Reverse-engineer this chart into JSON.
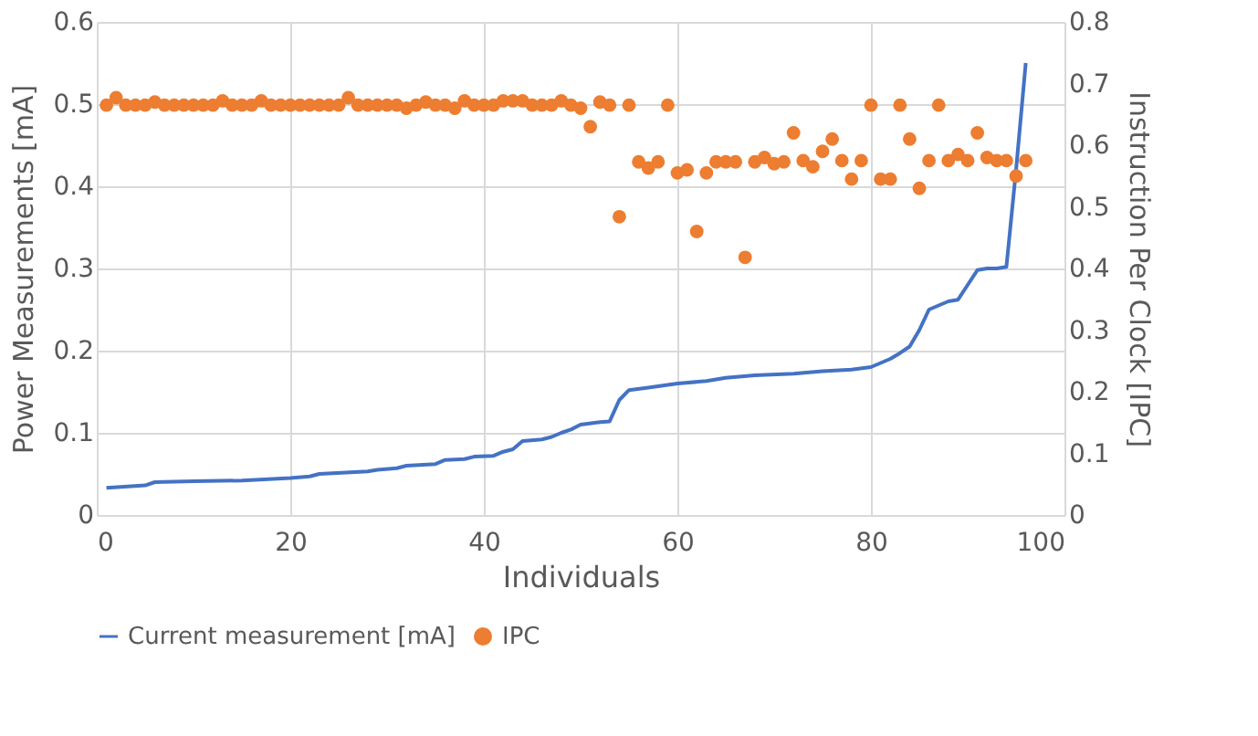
{
  "chart_data": {
    "type": "line",
    "xlabel": "Individuals",
    "ylabel": "Power Measurements [mA]",
    "y2label": "Instruction Per Clock [IPC]",
    "xlim": [
      0,
      100
    ],
    "xticks": [
      0,
      20,
      40,
      60,
      80,
      100
    ],
    "ylim": [
      0,
      0.6
    ],
    "yticks": [
      0,
      0.1,
      0.2,
      0.3,
      0.4,
      0.5,
      0.6
    ],
    "y2lim": [
      0,
      0.8
    ],
    "y2ticks": [
      0,
      0.1,
      0.2,
      0.3,
      0.4,
      0.5,
      0.6,
      0.7,
      0.8
    ],
    "grid": true,
    "legend": "bottom",
    "series": [
      {
        "name": "Current measurement [mA]",
        "color": "#4472c4",
        "marker": "none",
        "line_style": "solid",
        "x": [
          1,
          5,
          6,
          10,
          15,
          20,
          22,
          23,
          28,
          29,
          31,
          32,
          35,
          36,
          38,
          39,
          41,
          42,
          43,
          44,
          46,
          47,
          48,
          49,
          50,
          52,
          53,
          54,
          55,
          57,
          60,
          63,
          65,
          68,
          72,
          75,
          78,
          80,
          82,
          83,
          84,
          85,
          86,
          87,
          88,
          89,
          90,
          91,
          92,
          93,
          94,
          95,
          96
        ],
        "values": [
          0.033,
          0.036,
          0.04,
          0.041,
          0.042,
          0.045,
          0.047,
          0.05,
          0.053,
          0.055,
          0.057,
          0.06,
          0.062,
          0.067,
          0.068,
          0.071,
          0.072,
          0.077,
          0.08,
          0.09,
          0.092,
          0.095,
          0.1,
          0.104,
          0.11,
          0.113,
          0.114,
          0.14,
          0.152,
          0.155,
          0.16,
          0.163,
          0.167,
          0.17,
          0.172,
          0.175,
          0.177,
          0.18,
          0.19,
          0.197,
          0.205,
          0.225,
          0.25,
          0.255,
          0.26,
          0.262,
          0.28,
          0.298,
          0.3,
          0.3,
          0.302,
          0.42,
          0.55
        ]
      },
      {
        "name": "IPC",
        "type": "scatter",
        "axis": "y2",
        "color": "#ed7d31",
        "marker": "circle",
        "x": [
          1,
          2,
          3,
          4,
          5,
          6,
          7,
          8,
          9,
          10,
          11,
          12,
          13,
          14,
          15,
          16,
          17,
          18,
          19,
          20,
          21,
          22,
          23,
          24,
          25,
          26,
          27,
          28,
          29,
          30,
          31,
          32,
          33,
          34,
          35,
          36,
          37,
          38,
          39,
          40,
          41,
          42,
          43,
          44,
          45,
          46,
          47,
          48,
          49,
          50,
          51,
          52,
          53,
          54,
          55,
          56,
          57,
          58,
          59,
          60,
          61,
          62,
          63,
          64,
          65,
          66,
          67,
          68,
          69,
          70,
          71,
          72,
          73,
          74,
          75,
          76,
          77,
          78,
          79,
          80,
          81,
          82,
          83,
          84,
          85,
          86,
          87,
          88,
          89,
          90,
          91,
          92,
          93,
          94,
          95,
          96
        ],
        "values": [
          0.665,
          0.677,
          0.665,
          0.665,
          0.665,
          0.67,
          0.665,
          0.665,
          0.665,
          0.665,
          0.665,
          0.665,
          0.672,
          0.665,
          0.665,
          0.665,
          0.672,
          0.665,
          0.665,
          0.665,
          0.665,
          0.665,
          0.665,
          0.665,
          0.665,
          0.677,
          0.665,
          0.665,
          0.665,
          0.665,
          0.665,
          0.66,
          0.665,
          0.67,
          0.665,
          0.665,
          0.66,
          0.672,
          0.665,
          0.665,
          0.665,
          0.672,
          0.672,
          0.672,
          0.665,
          0.665,
          0.665,
          0.672,
          0.665,
          0.66,
          0.63,
          0.67,
          0.665,
          0.484,
          0.665,
          0.573,
          0.563,
          0.573,
          0.665,
          0.555,
          0.56,
          0.46,
          0.555,
          0.573,
          0.573,
          0.573,
          0.418,
          0.573,
          0.58,
          0.57,
          0.573,
          0.62,
          0.575,
          0.565,
          0.59,
          0.61,
          0.575,
          0.545,
          0.575,
          0.665,
          0.545,
          0.545,
          0.665,
          0.61,
          0.53,
          0.575,
          0.665,
          0.575,
          0.585,
          0.575,
          0.62,
          0.58,
          0.575,
          0.575,
          0.55,
          0.575
        ]
      }
    ]
  }
}
